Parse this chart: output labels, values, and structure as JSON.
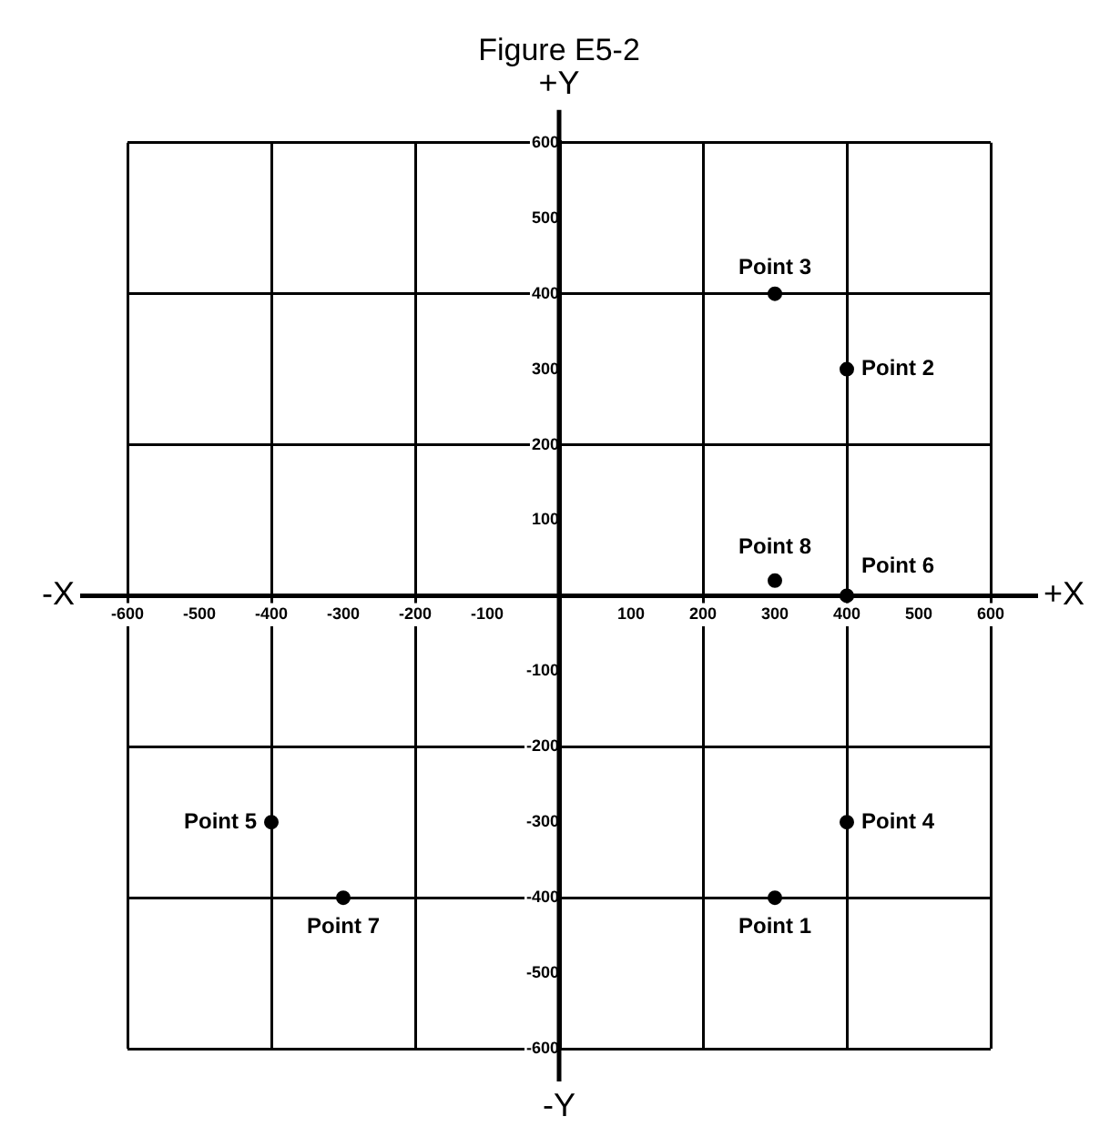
{
  "chart_data": {
    "type": "scatter",
    "title": "Figure E5-2",
    "x": [
      300,
      400,
      300,
      400,
      -400,
      400,
      -300,
      300
    ],
    "values": [
      -400,
      300,
      400,
      -300,
      -300,
      0,
      -400,
      20
    ],
    "color": "#000000",
    "marker": "circle",
    "xlim": [
      -600,
      600
    ],
    "ylim": [
      -600,
      600
    ],
    "xticks": [
      -600,
      -500,
      -400,
      -300,
      -200,
      -100,
      100,
      200,
      300,
      400,
      500,
      600
    ],
    "yticks": [
      -600,
      -500,
      -400,
      -300,
      -200,
      -100,
      100,
      200,
      300,
      400,
      500,
      600
    ],
    "grid": true,
    "annotations": [
      "+X",
      "-X",
      "+Y",
      "-Y",
      {
        "text": "Point 1",
        "x": 300,
        "y": -400
      },
      {
        "text": "Point 2",
        "x": 400,
        "y": 300
      },
      {
        "text": "Point 3",
        "x": 300,
        "y": 400
      },
      {
        "text": "Point 4",
        "x": 400,
        "y": -300
      },
      {
        "text": "Point 5",
        "x": -400,
        "y": -300
      },
      {
        "text": "Point 6",
        "x": 400,
        "y": 0
      },
      {
        "text": "Point 7",
        "x": -300,
        "y": -400
      },
      {
        "text": "Point 8",
        "x": 300,
        "y": 20
      }
    ]
  }
}
